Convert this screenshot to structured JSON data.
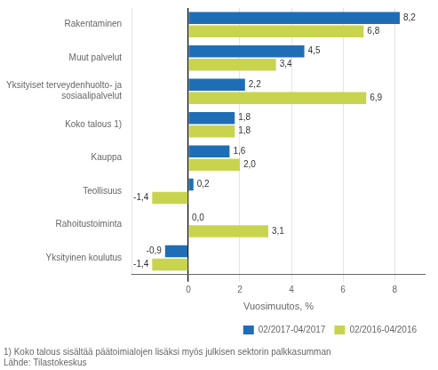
{
  "chart_data": {
    "type": "bar",
    "orientation": "horizontal",
    "categories": [
      "Rakentaminen",
      "Muut palvelut",
      "Yksityiset terveydenhuolto- ja\nsosiaalipalvelut",
      "Koko talous 1)",
      "Kauppa",
      "Teollisuus",
      "Rahoitustoiminta",
      "Yksityinen koulutus"
    ],
    "series": [
      {
        "name": "02/2017-04/2017",
        "color": "#1f6eb5",
        "values": [
          8.2,
          4.5,
          2.2,
          1.8,
          1.6,
          0.2,
          0.0,
          -0.9
        ],
        "value_labels": [
          "8,2",
          "4,5",
          "2,2",
          "1,8",
          "1,6",
          "0,2",
          "0,0",
          "-0,9"
        ]
      },
      {
        "name": "02/2016-04/2016",
        "color": "#c8d44e",
        "values": [
          6.8,
          3.4,
          6.9,
          1.8,
          2.0,
          -1.4,
          3.1,
          -1.4
        ],
        "value_labels": [
          "6,8",
          "3,4",
          "6,9",
          "1,8",
          "2,0",
          "-1,4",
          "3,1",
          "-1,4"
        ]
      }
    ],
    "xlabel": "Vuosimuutos, %",
    "xlim": [
      -2.2,
      9.2
    ],
    "xticks": [
      0,
      2,
      4,
      6,
      8
    ],
    "grid": true,
    "legend": "lower right",
    "data_labels": true,
    "annotations": [
      "1) Koko talous sisältää päätoimialojen lisäksi myös julkisen sektorin palkkasumman",
      "Lähde: Tilastokeskus"
    ]
  }
}
